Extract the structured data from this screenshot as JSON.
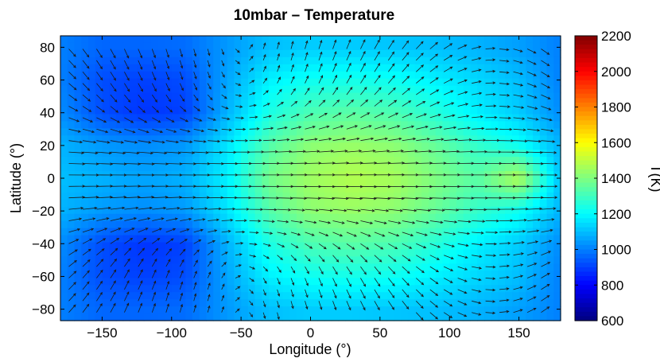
{
  "chart_data": {
    "type": "heatmap",
    "title": "10mbar – Temperature",
    "xlabel": "Longitude (°)",
    "ylabel": "Latitude (°)",
    "xlim": [
      -180,
      180
    ],
    "ylim": [
      -87,
      87
    ],
    "x_ticks": [
      -150,
      -100,
      -50,
      0,
      50,
      100,
      150
    ],
    "y_ticks": [
      -80,
      -60,
      -40,
      -20,
      0,
      20,
      40,
      60,
      80
    ],
    "x_tick_labels": [
      "−150",
      "−100",
      "−50",
      "0",
      "50",
      "100",
      "150"
    ],
    "y_tick_labels": [
      "−80",
      "−60",
      "−40",
      "−20",
      "0",
      "20",
      "40",
      "60",
      "80"
    ],
    "colorbar": {
      "label": "T(K)",
      "range": [
        600,
        2200
      ],
      "ticks": [
        600,
        800,
        1000,
        1200,
        1400,
        1600,
        1800,
        2000,
        2200
      ],
      "colormap": "jet"
    },
    "overlay": "wind vector arrows",
    "temperature_field_K": {
      "lon": [
        -180,
        -150,
        -120,
        -90,
        -60,
        -30,
        0,
        30,
        60,
        90,
        120,
        150,
        180
      ],
      "lat": [
        -80,
        -60,
        -40,
        -20,
        0,
        20,
        40,
        60,
        80
      ],
      "values": [
        [
          1000,
          960,
          960,
          970,
          1040,
          1100,
          1120,
          1120,
          1110,
          1100,
          1080,
          1050,
          1000
        ],
        [
          1000,
          920,
          900,
          920,
          1060,
          1180,
          1220,
          1230,
          1220,
          1180,
          1140,
          1100,
          1000
        ],
        [
          1020,
          920,
          880,
          900,
          1080,
          1240,
          1320,
          1340,
          1320,
          1260,
          1180,
          1120,
          1020
        ],
        [
          1080,
          1040,
          1020,
          1040,
          1160,
          1330,
          1420,
          1440,
          1420,
          1360,
          1280,
          1220,
          1080
        ],
        [
          1100,
          1080,
          1060,
          1080,
          1180,
          1380,
          1450,
          1480,
          1460,
          1400,
          1340,
          1480,
          1100
        ],
        [
          1080,
          1040,
          1020,
          1040,
          1160,
          1330,
          1420,
          1440,
          1420,
          1360,
          1280,
          1220,
          1080
        ],
        [
          1020,
          920,
          880,
          900,
          1080,
          1240,
          1320,
          1340,
          1320,
          1260,
          1180,
          1120,
          1020
        ],
        [
          1000,
          920,
          900,
          920,
          1060,
          1180,
          1220,
          1230,
          1220,
          1180,
          1140,
          1100,
          1000
        ],
        [
          1000,
          960,
          960,
          970,
          1040,
          1100,
          1120,
          1120,
          1110,
          1100,
          1080,
          1050,
          1000
        ]
      ]
    }
  }
}
